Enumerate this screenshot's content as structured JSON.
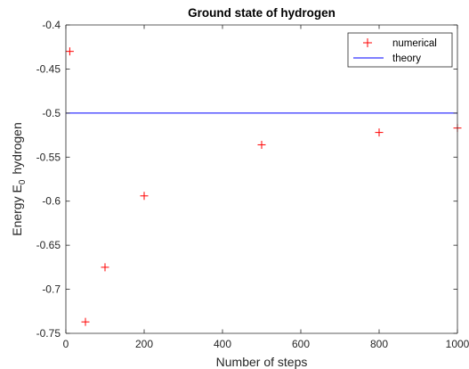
{
  "chart_data": {
    "type": "scatter",
    "title": "Ground state of hydrogen",
    "xlabel": "Number of steps",
    "ylabel": "Energy E",
    "ylabel_sub": "0",
    "ylabel_tail": "hydrogen",
    "xlim": [
      0,
      1000
    ],
    "ylim": [
      -0.75,
      -0.4
    ],
    "xticks": [
      0,
      200,
      400,
      600,
      800,
      1000
    ],
    "yticks": [
      -0.75,
      -0.7,
      -0.65,
      -0.6,
      -0.55,
      -0.5,
      -0.45,
      -0.4
    ],
    "xtick_labels": [
      "0",
      "200",
      "400",
      "600",
      "800",
      "1000"
    ],
    "ytick_labels": [
      "-0.75",
      "-0.7",
      "-0.65",
      "-0.6",
      "-0.55",
      "-0.5",
      "-0.45",
      "-0.4"
    ],
    "grid": false,
    "legend": {
      "position": "top-right",
      "entries": [
        "numerical",
        "theory"
      ]
    },
    "series": [
      {
        "name": "numerical",
        "type": "scatter",
        "marker": "+",
        "color": "#ff0000",
        "x": [
          10,
          50,
          100,
          200,
          500,
          800,
          1000
        ],
        "y": [
          -0.43,
          -0.737,
          -0.675,
          -0.594,
          -0.536,
          -0.522,
          -0.517
        ]
      },
      {
        "name": "theory",
        "type": "line",
        "color": "#0000ff",
        "x": [
          0,
          1000
        ],
        "y": [
          -0.5,
          -0.5
        ]
      }
    ]
  }
}
